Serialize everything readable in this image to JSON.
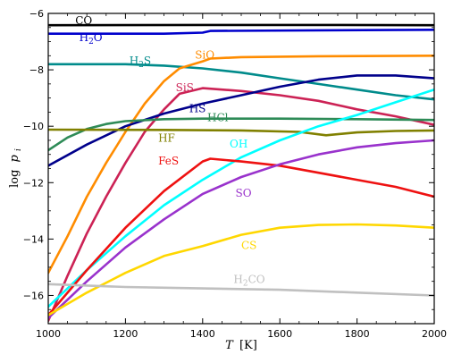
{
  "chart_data": {
    "type": "line",
    "xlabel": {
      "symbol": "T",
      "unit": "[K]"
    },
    "ylabel": {
      "prefix": "log",
      "symbol": "p",
      "sub": "i"
    },
    "xlim": [
      1000,
      2000
    ],
    "ylim": [
      -17,
      -6
    ],
    "xticks": [
      "1000",
      "1200",
      "1400",
      "1600",
      "1800",
      "2000"
    ],
    "yticks": [
      "−6",
      "−8",
      "−10",
      "−12",
      "−14",
      "−16"
    ],
    "grid": false,
    "series": [
      {
        "name": "CO",
        "label": {
          "base": "CO",
          "sub": ""
        },
        "color": "#000000",
        "label_at": [
          1070,
          -6.38
        ],
        "points": [
          [
            1000,
            -6.42
          ],
          [
            1400,
            -6.41
          ],
          [
            1700,
            -6.41
          ],
          [
            2000,
            -6.42
          ]
        ]
      },
      {
        "name": "H2O",
        "label": {
          "base": "H",
          "sub": "2",
          "post": "O"
        },
        "color": "#0000cc",
        "label_at": [
          1080,
          -6.98
        ],
        "points": [
          [
            1000,
            -6.72
          ],
          [
            1300,
            -6.72
          ],
          [
            1400,
            -6.68
          ],
          [
            1420,
            -6.62
          ],
          [
            1700,
            -6.6
          ],
          [
            2000,
            -6.58
          ]
        ]
      },
      {
        "name": "H2S",
        "label": {
          "base": "H",
          "sub": "2",
          "post": "S"
        },
        "color": "#008b8b",
        "label_at": [
          1210,
          -7.8
        ],
        "points": [
          [
            1000,
            -7.8
          ],
          [
            1200,
            -7.8
          ],
          [
            1300,
            -7.85
          ],
          [
            1400,
            -7.95
          ],
          [
            1500,
            -8.1
          ],
          [
            1600,
            -8.3
          ],
          [
            1700,
            -8.5
          ],
          [
            1800,
            -8.7
          ],
          [
            1900,
            -8.9
          ],
          [
            2000,
            -9.05
          ]
        ]
      },
      {
        "name": "SiO",
        "label": {
          "base": "SiO",
          "sub": ""
        },
        "color": "#ff8c00",
        "label_at": [
          1380,
          -7.6
        ],
        "points": [
          [
            1000,
            -15.2
          ],
          [
            1050,
            -13.9
          ],
          [
            1100,
            -12.5
          ],
          [
            1150,
            -11.3
          ],
          [
            1200,
            -10.2
          ],
          [
            1250,
            -9.2
          ],
          [
            1300,
            -8.4
          ],
          [
            1340,
            -7.95
          ],
          [
            1400,
            -7.7
          ],
          [
            1420,
            -7.6
          ],
          [
            1500,
            -7.55
          ],
          [
            1700,
            -7.52
          ],
          [
            2000,
            -7.5
          ]
        ]
      },
      {
        "name": "SiS",
        "label": {
          "base": "SiS",
          "sub": ""
        },
        "color": "#cc2255",
        "label_at": [
          1330,
          -8.75
        ],
        "points": [
          [
            1000,
            -16.9
          ],
          [
            1050,
            -15.3
          ],
          [
            1100,
            -13.8
          ],
          [
            1150,
            -12.5
          ],
          [
            1200,
            -11.3
          ],
          [
            1250,
            -10.2
          ],
          [
            1300,
            -9.4
          ],
          [
            1340,
            -8.85
          ],
          [
            1400,
            -8.65
          ],
          [
            1500,
            -8.75
          ],
          [
            1600,
            -8.9
          ],
          [
            1700,
            -9.1
          ],
          [
            1800,
            -9.4
          ],
          [
            1900,
            -9.65
          ],
          [
            2000,
            -9.95
          ]
        ]
      },
      {
        "name": "HS",
        "label": {
          "base": "HS",
          "sub": ""
        },
        "color": "#00008b",
        "label_at": [
          1365,
          -9.5
        ],
        "points": [
          [
            1000,
            -11.4
          ],
          [
            1100,
            -10.65
          ],
          [
            1200,
            -10.0
          ],
          [
            1300,
            -9.55
          ],
          [
            1400,
            -9.2
          ],
          [
            1500,
            -8.9
          ],
          [
            1600,
            -8.6
          ],
          [
            1700,
            -8.35
          ],
          [
            1800,
            -8.2
          ],
          [
            1900,
            -8.2
          ],
          [
            2000,
            -8.3
          ]
        ]
      },
      {
        "name": "HCl",
        "label": {
          "base": "HCl",
          "sub": ""
        },
        "color": "#2e8b57",
        "label_at": [
          1412,
          -9.82
        ],
        "points": [
          [
            1000,
            -10.85
          ],
          [
            1050,
            -10.4
          ],
          [
            1100,
            -10.1
          ],
          [
            1150,
            -9.92
          ],
          [
            1200,
            -9.82
          ],
          [
            1300,
            -9.75
          ],
          [
            1400,
            -9.73
          ],
          [
            1600,
            -9.73
          ],
          [
            1800,
            -9.75
          ],
          [
            2000,
            -9.78
          ]
        ]
      },
      {
        "name": "HF",
        "label": {
          "base": "HF",
          "sub": ""
        },
        "color": "#808000",
        "label_at": [
          1285,
          -10.55
        ],
        "points": [
          [
            1000,
            -10.12
          ],
          [
            1300,
            -10.13
          ],
          [
            1500,
            -10.15
          ],
          [
            1650,
            -10.2
          ],
          [
            1720,
            -10.32
          ],
          [
            1800,
            -10.22
          ],
          [
            1900,
            -10.17
          ],
          [
            2000,
            -10.15
          ]
        ]
      },
      {
        "name": "OH",
        "label": {
          "base": "OH",
          "sub": ""
        },
        "color": "#00ffff",
        "label_at": [
          1470,
          -10.75
        ],
        "points": [
          [
            1000,
            -16.4
          ],
          [
            1100,
            -15.1
          ],
          [
            1200,
            -13.9
          ],
          [
            1300,
            -12.8
          ],
          [
            1400,
            -11.9
          ],
          [
            1500,
            -11.1
          ],
          [
            1600,
            -10.5
          ],
          [
            1700,
            -10.0
          ],
          [
            1800,
            -9.6
          ],
          [
            1900,
            -9.15
          ],
          [
            2000,
            -8.7
          ]
        ]
      },
      {
        "name": "FeS",
        "label": {
          "base": "FeS",
          "sub": ""
        },
        "color": "#ee1111",
        "label_at": [
          1285,
          -11.35
        ],
        "points": [
          [
            1000,
            -16.7
          ],
          [
            1100,
            -15.1
          ],
          [
            1200,
            -13.6
          ],
          [
            1300,
            -12.3
          ],
          [
            1400,
            -11.25
          ],
          [
            1420,
            -11.15
          ],
          [
            1500,
            -11.25
          ],
          [
            1600,
            -11.4
          ],
          [
            1700,
            -11.65
          ],
          [
            1800,
            -11.9
          ],
          [
            1900,
            -12.15
          ],
          [
            2000,
            -12.5
          ]
        ]
      },
      {
        "name": "SO",
        "label": {
          "base": "SO",
          "sub": ""
        },
        "color": "#9932cc",
        "label_at": [
          1485,
          -12.5
        ],
        "points": [
          [
            1000,
            -16.8
          ],
          [
            1100,
            -15.5
          ],
          [
            1200,
            -14.3
          ],
          [
            1300,
            -13.3
          ],
          [
            1400,
            -12.4
          ],
          [
            1500,
            -11.8
          ],
          [
            1600,
            -11.35
          ],
          [
            1700,
            -11.0
          ],
          [
            1800,
            -10.75
          ],
          [
            1900,
            -10.6
          ],
          [
            2000,
            -10.5
          ]
        ]
      },
      {
        "name": "CS",
        "label": {
          "base": "CS",
          "sub": ""
        },
        "color": "#ffd700",
        "label_at": [
          1500,
          -14.35
        ],
        "points": [
          [
            1000,
            -16.7
          ],
          [
            1100,
            -15.9
          ],
          [
            1200,
            -15.2
          ],
          [
            1300,
            -14.6
          ],
          [
            1400,
            -14.25
          ],
          [
            1500,
            -13.85
          ],
          [
            1600,
            -13.6
          ],
          [
            1700,
            -13.5
          ],
          [
            1800,
            -13.48
          ],
          [
            1900,
            -13.52
          ],
          [
            2000,
            -13.6
          ]
        ]
      },
      {
        "name": "H2CO",
        "label": {
          "base": "H",
          "sub": "2",
          "post": "CO"
        },
        "color": "#c0c0c0",
        "label_at": [
          1480,
          -15.55
        ],
        "points": [
          [
            1000,
            -15.6
          ],
          [
            1200,
            -15.7
          ],
          [
            1400,
            -15.75
          ],
          [
            1600,
            -15.8
          ],
          [
            1800,
            -15.9
          ],
          [
            2000,
            -16.0
          ]
        ]
      }
    ]
  }
}
